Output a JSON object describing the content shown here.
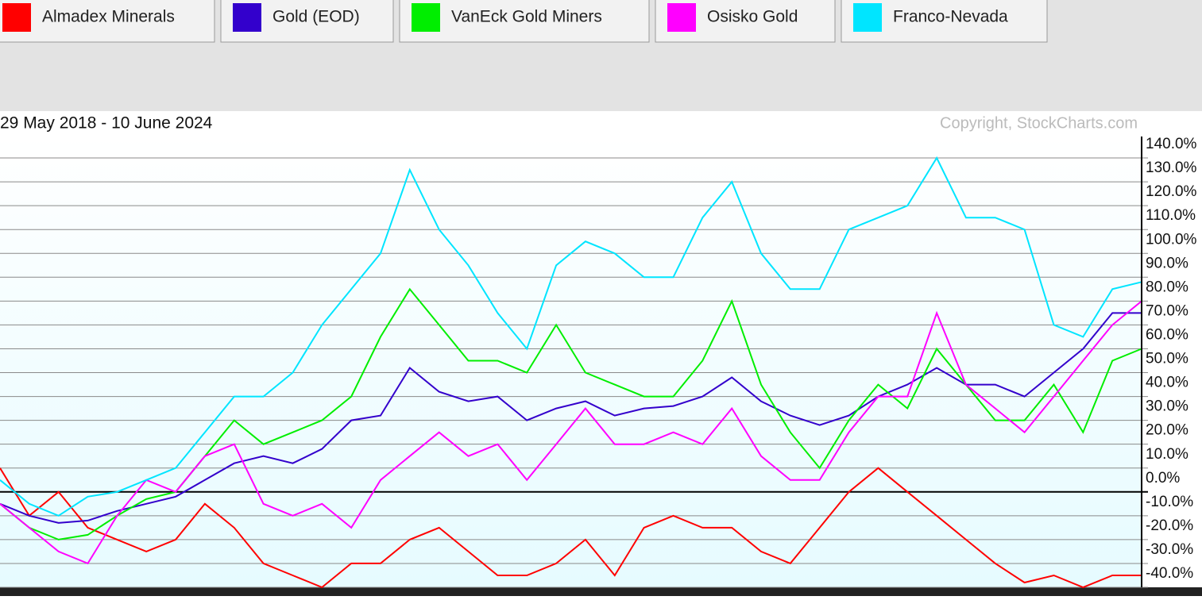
{
  "chart_data": {
    "type": "line",
    "title": "29 May 2018 - 10 June 2024",
    "source": "Copyright, StockCharts.com",
    "categories": [
      null,
      null,
      null,
      null,
      null,
      null,
      null,
      null,
      null,
      null,
      null,
      null,
      null,
      null,
      null,
      null,
      null,
      null,
      null,
      null,
      null,
      null,
      null,
      null,
      null,
      null,
      null,
      null,
      null,
      null,
      null,
      null,
      null,
      null,
      null,
      null,
      null,
      null,
      null,
      null
    ],
    "ylim": [
      -40,
      149
    ],
    "yticks": [
      {
        "value": 140,
        "label": "140.0%"
      },
      {
        "value": 130,
        "label": "130.0%"
      },
      {
        "value": 120,
        "label": "120.0%"
      },
      {
        "value": 110,
        "label": "110.0%"
      },
      {
        "value": 100,
        "label": "100.0%"
      },
      {
        "value": 90,
        "label": "90.0%"
      },
      {
        "value": 80,
        "label": "80.0%"
      },
      {
        "value": 70,
        "label": "70.0%"
      },
      {
        "value": 60,
        "label": "60.0%"
      },
      {
        "value": 50,
        "label": "50.0%"
      },
      {
        "value": 40,
        "label": "40.0%"
      },
      {
        "value": 30,
        "label": "30.0%"
      },
      {
        "value": 20,
        "label": "20.0%"
      },
      {
        "value": 10,
        "label": "10.0%"
      },
      {
        "value": 0,
        "label": "0.0%"
      },
      {
        "value": -10,
        "label": "-10.0%"
      },
      {
        "value": -20,
        "label": "-20.0%"
      },
      {
        "value": -30,
        "label": "-30.0%"
      },
      {
        "value": -40,
        "label": "-40.0%"
      }
    ],
    "grid": true,
    "series": [
      {
        "name": "Almadex Minerals",
        "color": "#ff0000",
        "values": [
          10,
          -10,
          0,
          -15,
          -20,
          -25,
          -20,
          -5,
          -15,
          -30,
          -35,
          -40,
          -30,
          -30,
          -20,
          -15,
          -25,
          -35,
          -35,
          -30,
          -20,
          -35,
          -15,
          -10,
          -15,
          -15,
          -25,
          -30,
          -15,
          0,
          10,
          0,
          -10,
          -20,
          -30,
          -38,
          -35,
          -40,
          -35,
          -35
        ]
      },
      {
        "name": "Gold (EOD)",
        "color": "#3300cc",
        "values": [
          -5,
          -10,
          -13,
          -12,
          -8,
          -5,
          -2,
          5,
          12,
          15,
          12,
          18,
          30,
          32,
          52,
          42,
          38,
          40,
          30,
          35,
          38,
          32,
          35,
          36,
          40,
          48,
          38,
          32,
          28,
          32,
          40,
          45,
          52,
          45,
          45,
          40,
          50,
          60,
          75,
          75
        ]
      },
      {
        "name": "VanEck Gold Miners",
        "color": "#00ee00",
        "values": [
          -5,
          -15,
          -20,
          -18,
          -10,
          -3,
          0,
          15,
          30,
          20,
          25,
          30,
          40,
          65,
          85,
          70,
          55,
          55,
          50,
          70,
          50,
          45,
          40,
          40,
          55,
          80,
          45,
          25,
          10,
          30,
          45,
          35,
          60,
          45,
          30,
          30,
          45,
          25,
          55,
          60
        ]
      },
      {
        "name": "Osisko Gold",
        "color": "#ff00ff",
        "values": [
          -5,
          -15,
          -25,
          -30,
          -10,
          5,
          0,
          15,
          20,
          -5,
          -10,
          -5,
          -15,
          5,
          15,
          25,
          15,
          20,
          5,
          20,
          35,
          20,
          20,
          25,
          20,
          35,
          15,
          5,
          5,
          25,
          40,
          40,
          75,
          45,
          35,
          25,
          40,
          55,
          70,
          80
        ]
      },
      {
        "name": "Franco-Nevada",
        "color": "#00e5ff",
        "values": [
          5,
          -5,
          -10,
          -2,
          0,
          5,
          10,
          25,
          40,
          40,
          50,
          70,
          85,
          100,
          135,
          110,
          95,
          75,
          60,
          95,
          105,
          100,
          90,
          90,
          115,
          130,
          100,
          85,
          85,
          110,
          115,
          120,
          140,
          115,
          115,
          110,
          70,
          65,
          85,
          88
        ]
      }
    ]
  }
}
